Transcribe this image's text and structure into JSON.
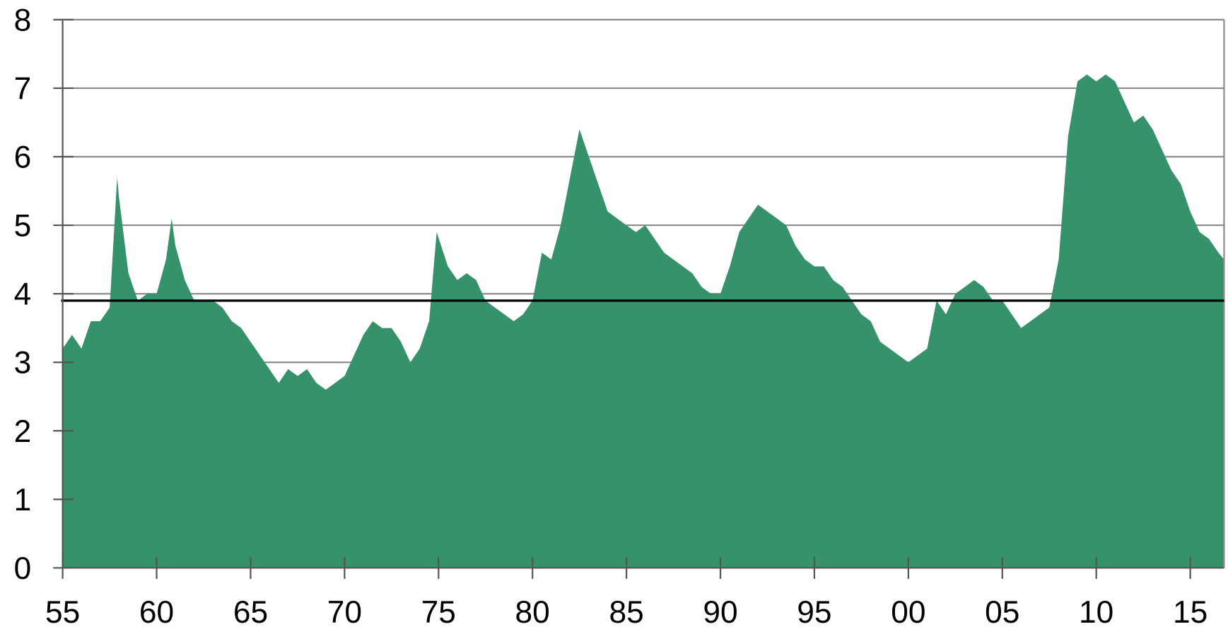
{
  "chart_data": {
    "type": "area",
    "color": "#35926a",
    "x": [
      1955.0,
      1955.5,
      1956.0,
      1956.5,
      1957.0,
      1957.5,
      1957.9,
      1958.0,
      1958.5,
      1959.0,
      1959.5,
      1960.0,
      1960.5,
      1960.8,
      1961.0,
      1961.5,
      1962.0,
      1962.5,
      1963.0,
      1963.5,
      1964.0,
      1964.5,
      1965.0,
      1965.5,
      1966.0,
      1966.5,
      1967.0,
      1967.5,
      1968.0,
      1968.5,
      1969.0,
      1969.5,
      1970.0,
      1970.5,
      1971.0,
      1971.5,
      1972.0,
      1972.5,
      1973.0,
      1973.5,
      1974.0,
      1974.5,
      1974.9,
      1975.5,
      1976.0,
      1976.5,
      1977.0,
      1977.5,
      1978.0,
      1978.5,
      1979.0,
      1979.5,
      1980.0,
      1980.5,
      1981.0,
      1981.5,
      1982.0,
      1982.5,
      1983.0,
      1983.5,
      1984.0,
      1984.5,
      1985.0,
      1985.5,
      1986.0,
      1986.5,
      1987.0,
      1987.5,
      1988.0,
      1988.5,
      1989.0,
      1989.5,
      1990.0,
      1990.5,
      1991.0,
      1991.5,
      1992.0,
      1992.5,
      1993.0,
      1993.5,
      1994.0,
      1994.5,
      1995.0,
      1995.5,
      1996.0,
      1996.5,
      1997.0,
      1997.5,
      1998.0,
      1998.5,
      1999.0,
      1999.5,
      2000.0,
      2000.5,
      2001.0,
      2001.5,
      2002.0,
      2002.5,
      2003.0,
      2003.5,
      2004.0,
      2004.5,
      2005.0,
      2005.5,
      2006.0,
      2006.5,
      2007.0,
      2007.5,
      2008.0,
      2008.5,
      2009.0,
      2009.5,
      2010.0,
      2010.5,
      2011.0,
      2011.5,
      2012.0,
      2012.5,
      2013.0,
      2013.5,
      2014.0,
      2014.5,
      2015.0,
      2015.5,
      2016.0,
      2016.5,
      2016.8
    ],
    "values": [
      3.2,
      3.4,
      3.2,
      3.6,
      3.6,
      3.8,
      5.7,
      5.4,
      4.3,
      3.9,
      4.0,
      4.0,
      4.5,
      5.1,
      4.7,
      4.2,
      3.9,
      3.9,
      3.9,
      3.8,
      3.6,
      3.5,
      3.3,
      3.1,
      2.9,
      2.7,
      2.9,
      2.8,
      2.9,
      2.7,
      2.6,
      2.7,
      2.8,
      3.1,
      3.4,
      3.6,
      3.5,
      3.5,
      3.3,
      3.0,
      3.2,
      3.6,
      4.9,
      4.4,
      4.2,
      4.3,
      4.2,
      3.9,
      3.8,
      3.7,
      3.6,
      3.7,
      3.9,
      4.6,
      4.5,
      5.0,
      5.7,
      6.4,
      6.0,
      5.6,
      5.2,
      5.1,
      5.0,
      4.9,
      5.0,
      4.8,
      4.6,
      4.5,
      4.4,
      4.3,
      4.1,
      4.0,
      4.0,
      4.4,
      4.9,
      5.1,
      5.3,
      5.2,
      5.1,
      5.0,
      4.7,
      4.5,
      4.4,
      4.4,
      4.2,
      4.1,
      3.9,
      3.7,
      3.6,
      3.3,
      3.2,
      3.1,
      3.0,
      3.1,
      3.2,
      3.9,
      3.7,
      4.0,
      4.1,
      4.2,
      4.1,
      3.9,
      3.9,
      3.7,
      3.5,
      3.6,
      3.7,
      3.8,
      4.5,
      6.3,
      7.1,
      7.2,
      7.1,
      7.2,
      7.1,
      6.8,
      6.5,
      6.6,
      6.4,
      6.1,
      5.8,
      5.6,
      5.2,
      4.9,
      4.8,
      4.6,
      4.5
    ],
    "mean_line": 3.9,
    "xlim": [
      1955,
      2016.8
    ],
    "xticks": [
      {
        "value": 1955,
        "label": "55"
      },
      {
        "value": 1960,
        "label": "60"
      },
      {
        "value": 1965,
        "label": "65"
      },
      {
        "value": 1970,
        "label": "70"
      },
      {
        "value": 1975,
        "label": "75"
      },
      {
        "value": 1980,
        "label": "80"
      },
      {
        "value": 1985,
        "label": "85"
      },
      {
        "value": 1990,
        "label": "90"
      },
      {
        "value": 1995,
        "label": "95"
      },
      {
        "value": 2000,
        "label": "00"
      },
      {
        "value": 2005,
        "label": "05"
      },
      {
        "value": 2010,
        "label": "10"
      },
      {
        "value": 2015,
        "label": "15"
      }
    ],
    "ylim": [
      0,
      8
    ],
    "yticks": [
      0,
      1,
      2,
      3,
      4,
      5,
      6,
      7,
      8
    ],
    "grid": true
  }
}
